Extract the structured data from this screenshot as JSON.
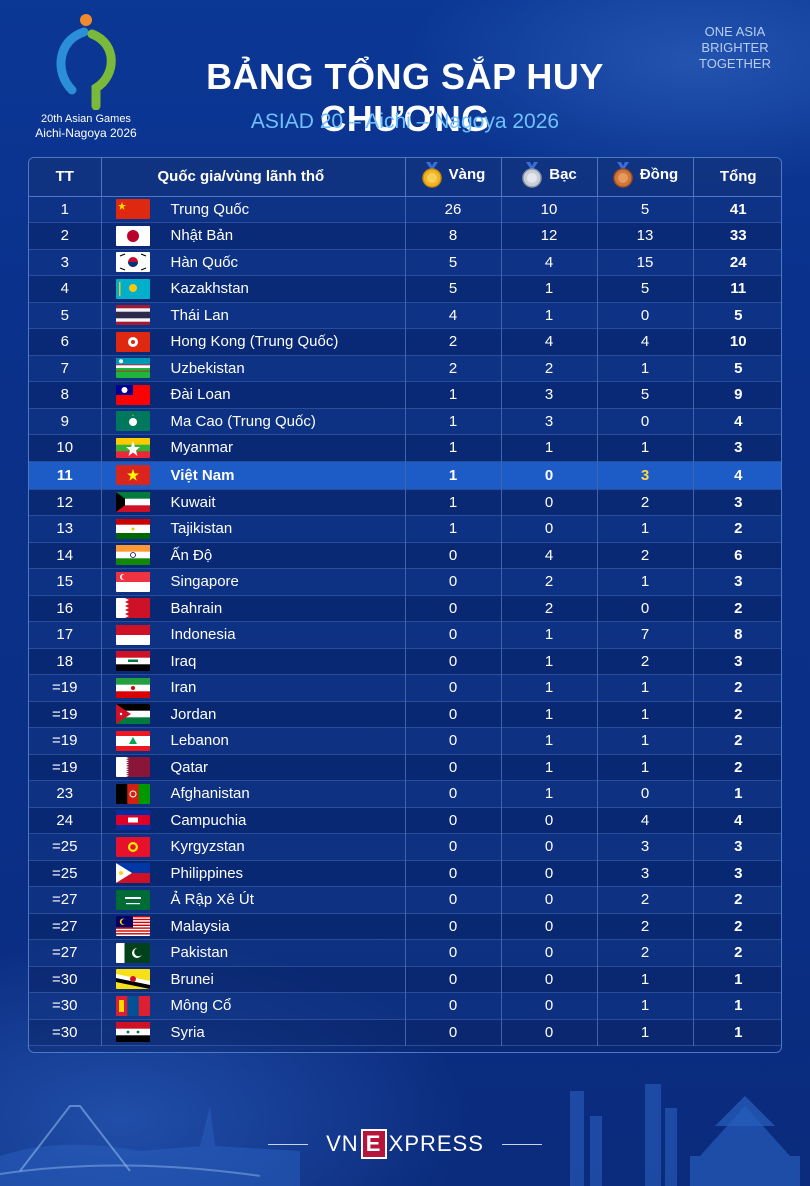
{
  "header": {
    "logo_line1": "20th Asian Games",
    "logo_line2": "Aichi-Nagoya 2026",
    "title": "BẢNG TỔNG SẮP HUY CHƯƠNG",
    "subtitle": "ASIAD 20 – Aichi – Nagoya 2026",
    "slogan": [
      "ONE ASIA",
      "BRIGHTER",
      "TOGETHER"
    ]
  },
  "table": {
    "headers": {
      "rank": "TT",
      "country": "Quốc gia/vùng lãnh thổ",
      "gold": "Vàng",
      "silver": "Bạc",
      "bronze": "Đồng",
      "total": "Tổng"
    },
    "rows": [
      {
        "rank": "1",
        "flag": "china-flag",
        "country": "Trung Quốc",
        "gold": "26",
        "silver": "10",
        "bronze": "5",
        "total": "41"
      },
      {
        "rank": "2",
        "flag": "japan-flag",
        "country": "Nhật Bản",
        "gold": "8",
        "silver": "12",
        "bronze": "13",
        "total": "33"
      },
      {
        "rank": "3",
        "flag": "south-korea-flag",
        "country": "Hàn Quốc",
        "gold": "5",
        "silver": "4",
        "bronze": "15",
        "total": "24"
      },
      {
        "rank": "4",
        "flag": "kazakhstan-flag",
        "country": "Kazakhstan",
        "gold": "5",
        "silver": "1",
        "bronze": "5",
        "total": "11"
      },
      {
        "rank": "5",
        "flag": "thailand-flag",
        "country": "Thái Lan",
        "gold": "4",
        "silver": "1",
        "bronze": "0",
        "total": "5"
      },
      {
        "rank": "6",
        "flag": "hong-kong-flag",
        "country": "Hong Kong (Trung Quốc)",
        "gold": "2",
        "silver": "4",
        "bronze": "4",
        "total": "10"
      },
      {
        "rank": "7",
        "flag": "uzbekistan-flag",
        "country": "Uzbekistan",
        "gold": "2",
        "silver": "2",
        "bronze": "1",
        "total": "5"
      },
      {
        "rank": "8",
        "flag": "taiwan-flag",
        "country": "Đài Loan",
        "gold": "1",
        "silver": "3",
        "bronze": "5",
        "total": "9"
      },
      {
        "rank": "9",
        "flag": "macau-flag",
        "country": "Ma Cao (Trung Quốc)",
        "gold": "1",
        "silver": "3",
        "bronze": "0",
        "total": "4"
      },
      {
        "rank": "10",
        "flag": "myanmar-flag",
        "country": "Myanmar",
        "gold": "1",
        "silver": "1",
        "bronze": "1",
        "total": "3"
      },
      {
        "rank": "11",
        "flag": "vietnam-flag",
        "country": "Việt Nam",
        "gold": "1",
        "silver": "0",
        "bronze": "3",
        "total": "4",
        "highlight": true
      },
      {
        "rank": "12",
        "flag": "kuwait-flag",
        "country": "Kuwait",
        "gold": "1",
        "silver": "0",
        "bronze": "2",
        "total": "3"
      },
      {
        "rank": "13",
        "flag": "tajikistan-flag",
        "country": "Tajikistan",
        "gold": "1",
        "silver": "0",
        "bronze": "1",
        "total": "2"
      },
      {
        "rank": "14",
        "flag": "india-flag",
        "country": "Ấn Độ",
        "gold": "0",
        "silver": "4",
        "bronze": "2",
        "total": "6"
      },
      {
        "rank": "15",
        "flag": "singapore-flag",
        "country": "Singapore",
        "gold": "0",
        "silver": "2",
        "bronze": "1",
        "total": "3"
      },
      {
        "rank": "16",
        "flag": "bahrain-flag",
        "country": "Bahrain",
        "gold": "0",
        "silver": "2",
        "bronze": "0",
        "total": "2"
      },
      {
        "rank": "17",
        "flag": "indonesia-flag",
        "country": "Indonesia",
        "gold": "0",
        "silver": "1",
        "bronze": "7",
        "total": "8"
      },
      {
        "rank": "18",
        "flag": "iraq-flag",
        "country": "Iraq",
        "gold": "0",
        "silver": "1",
        "bronze": "2",
        "total": "3"
      },
      {
        "rank": "=19",
        "flag": "iran-flag",
        "country": "Iran",
        "gold": "0",
        "silver": "1",
        "bronze": "1",
        "total": "2"
      },
      {
        "rank": "=19",
        "flag": "jordan-flag",
        "country": "Jordan",
        "gold": "0",
        "silver": "1",
        "bronze": "1",
        "total": "2"
      },
      {
        "rank": "=19",
        "flag": "lebanon-flag",
        "country": "Lebanon",
        "gold": "0",
        "silver": "1",
        "bronze": "1",
        "total": "2"
      },
      {
        "rank": "=19",
        "flag": "qatar-flag",
        "country": "Qatar",
        "gold": "0",
        "silver": "1",
        "bronze": "1",
        "total": "2"
      },
      {
        "rank": "23",
        "flag": "afghanistan-flag",
        "country": "Afghanistan",
        "gold": "0",
        "silver": "1",
        "bronze": "0",
        "total": "1"
      },
      {
        "rank": "24",
        "flag": "cambodia-flag",
        "country": "Campuchia",
        "gold": "0",
        "silver": "0",
        "bronze": "4",
        "total": "4"
      },
      {
        "rank": "=25",
        "flag": "kyrgyzstan-flag",
        "country": "Kyrgyzstan",
        "gold": "0",
        "silver": "0",
        "bronze": "3",
        "total": "3"
      },
      {
        "rank": "=25",
        "flag": "philippines-flag",
        "country": "Philippines",
        "gold": "0",
        "silver": "0",
        "bronze": "3",
        "total": "3"
      },
      {
        "rank": "=27",
        "flag": "saudi-arabia-flag",
        "country": "Ả Rập Xê Út",
        "gold": "0",
        "silver": "0",
        "bronze": "2",
        "total": "2"
      },
      {
        "rank": "=27",
        "flag": "malaysia-flag",
        "country": "Malaysia",
        "gold": "0",
        "silver": "0",
        "bronze": "2",
        "total": "2"
      },
      {
        "rank": "=27",
        "flag": "pakistan-flag",
        "country": "Pakistan",
        "gold": "0",
        "silver": "0",
        "bronze": "2",
        "total": "2"
      },
      {
        "rank": "=30",
        "flag": "brunei-flag",
        "country": "Brunei",
        "gold": "0",
        "silver": "0",
        "bronze": "1",
        "total": "1"
      },
      {
        "rank": "=30",
        "flag": "mongolia-flag",
        "country": "Mông Cổ",
        "gold": "0",
        "silver": "0",
        "bronze": "1",
        "total": "1"
      },
      {
        "rank": "=30",
        "flag": "syria-flag",
        "country": "Syria",
        "gold": "0",
        "silver": "0",
        "bronze": "1",
        "total": "1"
      }
    ]
  },
  "footer": {
    "brand_left": "VN",
    "brand_mid": "E",
    "brand_right": "XPRESS"
  },
  "colors": {
    "background": "#0a2f86",
    "subtitle": "#6fc1ff",
    "highlight_row": "#1d5cc7",
    "highlight_bronze": "#ffd54a",
    "gold_medal": "#f2b520",
    "silver_medal": "#c9ced8",
    "bronze_medal": "#d2773a"
  }
}
